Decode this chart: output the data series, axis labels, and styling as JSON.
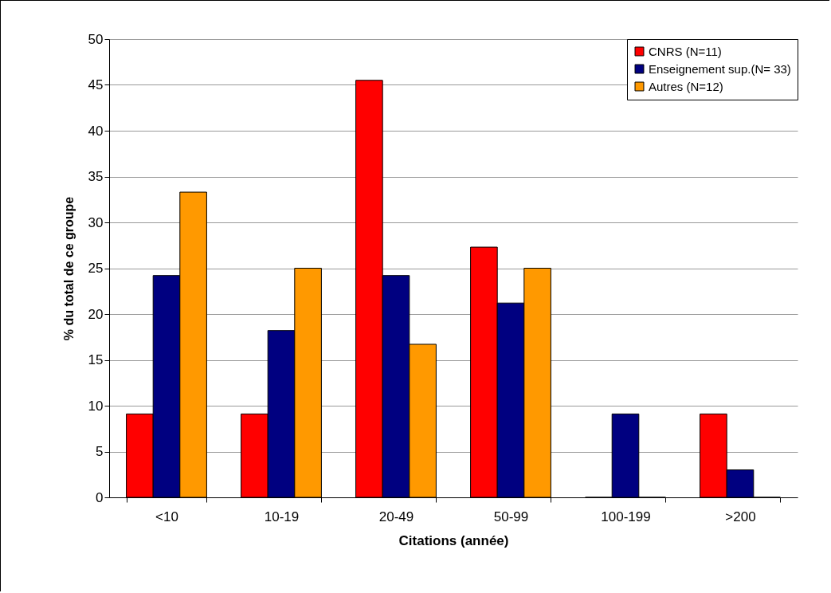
{
  "chart_data": {
    "type": "bar",
    "xlabel": "Citations (année)",
    "ylabel": "%  du total de ce groupe",
    "categories": [
      "<10",
      "10-19",
      "20-49",
      "50-99",
      "100-199",
      ">200"
    ],
    "series": [
      {
        "name": "CNRS (N=11)",
        "color": "#ff0000",
        "values": [
          9.1,
          9.1,
          45.5,
          27.3,
          0,
          9.1
        ]
      },
      {
        "name": "Enseignement sup.(N= 33)",
        "color": "#000080",
        "values": [
          24.2,
          18.2,
          24.2,
          21.2,
          9.1,
          3.0
        ]
      },
      {
        "name": "Autres (N=12)",
        "color": "#ff9900",
        "values": [
          33.3,
          25,
          16.7,
          25,
          0,
          0
        ]
      }
    ],
    "ylim": [
      0,
      50
    ],
    "yticks": [
      0,
      5,
      10,
      15,
      20,
      25,
      30,
      35,
      40,
      45,
      50
    ],
    "grid": "y",
    "legend": "top right"
  }
}
